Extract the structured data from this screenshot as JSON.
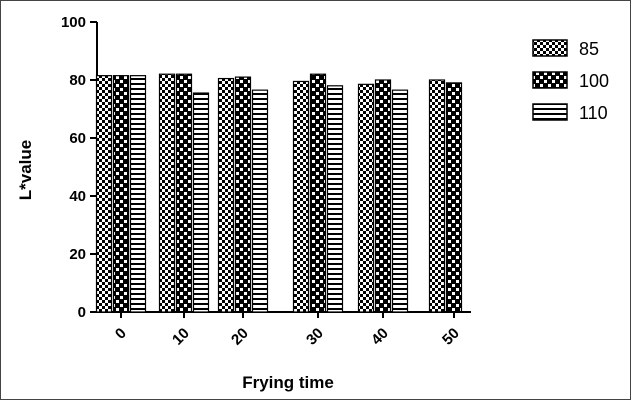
{
  "chart_data": {
    "type": "bar",
    "title": "",
    "xlabel": "Frying time",
    "ylabel": "L*value",
    "ylim": [
      0,
      100
    ],
    "yticks": [
      "0",
      "20",
      "40",
      "60",
      "80",
      "100"
    ],
    "categories": [
      "0",
      "10",
      "20",
      "30",
      "40",
      "50"
    ],
    "legend_position": "top-right",
    "series": [
      {
        "name": "85",
        "pattern": "checker-fine",
        "values": [
          81.5,
          82,
          80.5,
          79.5,
          78.5,
          80
        ]
      },
      {
        "name": "100",
        "pattern": "checker-coarse",
        "values": [
          81.5,
          82,
          81,
          82,
          80,
          79
        ]
      },
      {
        "name": "110",
        "pattern": "horizontal-stripes",
        "values": [
          81.5,
          75.5,
          76.5,
          78,
          76.5,
          null
        ]
      }
    ]
  }
}
